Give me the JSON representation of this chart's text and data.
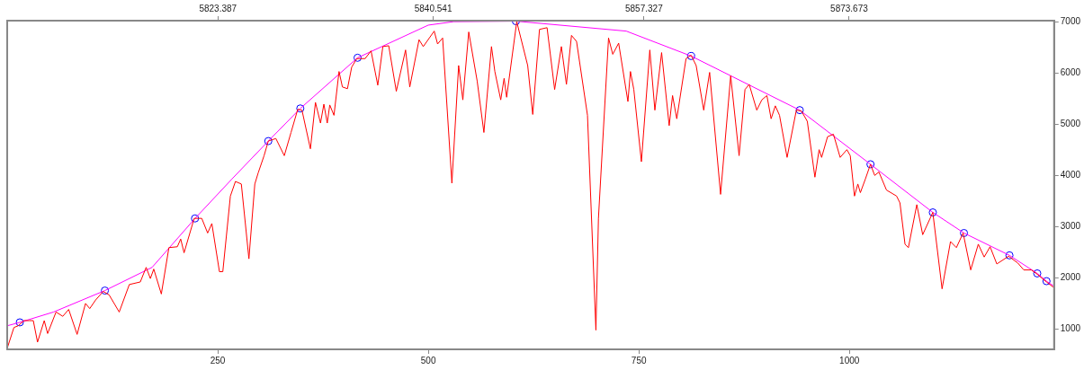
{
  "chart_data": {
    "type": "line",
    "xlim": [
      0,
      1243
    ],
    "xticks": [
      250,
      500,
      750,
      1000
    ],
    "x2lim": [
      5806.6,
      5890.0
    ],
    "x2ticks": [
      5823.387,
      5840.541,
      5857.327,
      5873.673
    ],
    "ylim": [
      600,
      7020
    ],
    "yticks": [
      1000,
      2000,
      3000,
      4000,
      5000,
      6000,
      7000
    ],
    "grid": false,
    "legend": false,
    "series": [
      {
        "type": "line",
        "color": "#ff0000",
        "x": [
          0,
          8,
          13,
          20,
          26,
          31,
          36,
          44,
          48,
          58,
          66,
          73,
          83,
          93,
          98,
          105,
          114,
          121,
          133,
          145,
          158,
          165,
          170,
          174,
          183,
          192,
          202,
          206,
          210,
          222,
          231,
          238,
          243,
          252,
          256,
          265,
          271,
          278,
          287,
          294,
          298,
          305,
          310,
          319,
          329,
          337,
          345,
          350,
          360,
          366,
          372,
          376,
          380,
          383,
          388,
          394,
          398,
          404,
          409,
          415,
          425,
          432,
          440,
          446,
          453,
          462,
          473,
          478,
          489,
          494,
          507,
          511,
          517,
          528,
          536,
          541,
          548,
          558,
          566,
          575,
          579,
          586,
          590,
          593,
          605,
          618,
          624,
          632,
          641,
          650,
          658,
          664,
          670,
          676,
          689,
          699,
          702,
          714,
          719,
          726,
          737,
          740,
          744,
          753,
          763,
          769,
          777,
          786,
          790,
          795,
          806,
          812,
          818,
          827,
          834,
          847,
          859,
          869,
          876,
          881,
          890,
          896,
          902,
          907,
          912,
          917,
          926,
          937,
          943,
          950,
          959,
          964,
          967,
          974,
          981,
          989,
          997,
          1001,
          1006,
          1010,
          1013,
          1019,
          1025,
          1030,
          1035,
          1044,
          1056,
          1060,
          1066,
          1070,
          1080,
          1087,
          1099,
          1110,
          1120,
          1127,
          1135,
          1144,
          1153,
          1160,
          1167,
          1175,
          1189,
          1200,
          1207,
          1216,
          1223,
          1234,
          1242
        ],
        "values": [
          620,
          1027,
          1060,
          1161,
          1161,
          1161,
          741,
          1161,
          909,
          1329,
          1245,
          1379,
          892,
          1496,
          1396,
          1564,
          1731,
          1664,
          1329,
          1866,
          1916,
          2201,
          1983,
          2168,
          1681,
          2587,
          2604,
          2755,
          2486,
          3158,
          3158,
          2872,
          3057,
          2117,
          2117,
          3594,
          3879,
          3829,
          2369,
          3829,
          4047,
          4383,
          4668,
          4718,
          4383,
          4836,
          5289,
          5272,
          4517,
          5423,
          5020,
          5389,
          5020,
          5373,
          5171,
          6027,
          5725,
          5691,
          6111,
          6279,
          6279,
          6430,
          5759,
          6514,
          6530,
          5641,
          6447,
          5725,
          6648,
          6514,
          6816,
          6564,
          6681,
          3846,
          6144,
          5473,
          6799,
          5842,
          4836,
          6514,
          6027,
          5473,
          5893,
          5524,
          7000,
          6144,
          5188,
          6849,
          6883,
          5675,
          6514,
          5775,
          6732,
          6614,
          5171,
          976,
          3158,
          6681,
          6363,
          6581,
          5440,
          6027,
          5675,
          4265,
          6447,
          5272,
          6396,
          4970,
          5557,
          5104,
          6279,
          6346,
          6144,
          5272,
          6010,
          3627,
          5943,
          4383,
          5675,
          5775,
          5272,
          5473,
          5557,
          5104,
          5356,
          5171,
          4349,
          5272,
          5255,
          5054,
          3963,
          4500,
          4349,
          4752,
          4802,
          4349,
          4500,
          4383,
          3594,
          3829,
          3661,
          3930,
          4215,
          3997,
          4064,
          3711,
          3594,
          3460,
          2654,
          2587,
          3426,
          2839,
          3275,
          1782,
          2705,
          2587,
          2872,
          2151,
          2654,
          2403,
          2604,
          2268,
          2419,
          2285,
          2151,
          2151,
          2067,
          1916,
          1815
        ]
      },
      {
        "type": "line",
        "color": "#ff00ff",
        "x": [
          0,
          15,
          55,
          116,
          172,
          223,
          267,
          310,
          348,
          416,
          500,
          530,
          604,
          735,
          812,
          941,
          1025,
          1099,
          1136,
          1190,
          1223,
          1234,
          1243
        ],
        "values": [
          1060,
          1127,
          1329,
          1748,
          2201,
          3157,
          3930,
          4668,
          5305,
          6295,
          6933,
          7000,
          7010,
          6816,
          6329,
          5272,
          4215,
          3275,
          2872,
          2436,
          2083,
          1932,
          1832
        ]
      },
      {
        "type": "scatter",
        "color": "#0000ff",
        "marker": "circle",
        "x": [
          15,
          116,
          223,
          310,
          348,
          416,
          604,
          812,
          941,
          1025,
          1099,
          1136,
          1190,
          1223,
          1234
        ],
        "values": [
          1127,
          1748,
          3157,
          4668,
          5305,
          6295,
          7010,
          6329,
          5272,
          4215,
          3275,
          2872,
          2436,
          2083,
          1932
        ]
      }
    ]
  }
}
